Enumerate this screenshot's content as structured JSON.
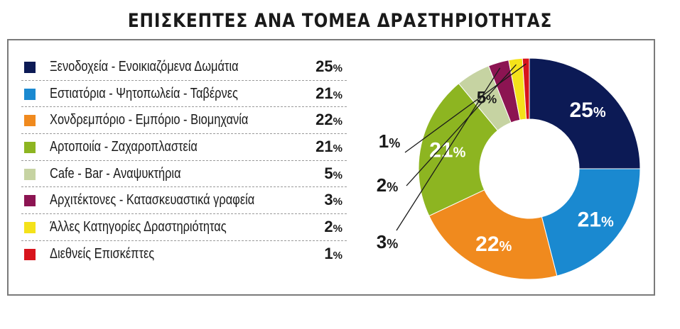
{
  "title": "ΕΠΙΣΚΕΠΤΕΣ ΑΝΑ ΤΟΜΕΑ ΔΡΑΣΤΗΡΙΟΤΗΤΑΣ",
  "chart_data": {
    "type": "pie",
    "title": "ΕΠΙΣΚΕΠΤΕΣ ΑΝΑ ΤΟΜΕΑ ΔΡΑΣΤΗΡΙΟΤΗΤΑΣ",
    "unit": "%",
    "legend_placement": "left",
    "series": [
      {
        "name": "Ξενοδοχεία - Ενοικιαζόμενα Δωμάτια",
        "value": 25,
        "label": "25",
        "color": "#0c1a55"
      },
      {
        "name": "Εστιατόρια - Ψητοπωλεία - Ταβέρνες",
        "value": 21,
        "label": "21",
        "color": "#1a89d0"
      },
      {
        "name": "Χονδρεμπόριο - Εμπόριο - Βιομηχανία",
        "value": 22,
        "label": "22",
        "color": "#f08a1e"
      },
      {
        "name": "Αρτοποιία - Ζαχαροπλαστεία",
        "value": 21,
        "label": "21",
        "color": "#8db521"
      },
      {
        "name": "Cafe - Bar - Αναψυκτήρια",
        "value": 5,
        "label": "5",
        "color": "#c6d3a2"
      },
      {
        "name": "Αρχιτέκτονες - Κατασκευαστικά γραφεία",
        "value": 3,
        "label": "3",
        "color": "#8c1452"
      },
      {
        "name": "Άλλες Κατηγορίες Δραστηριότητας",
        "value": 2,
        "label": "2",
        "color": "#f4e21a"
      },
      {
        "name": "Διεθνείς Επισκέπτες",
        "value": 1,
        "label": "1",
        "color": "#d8141c"
      }
    ],
    "percent_sign": "%"
  }
}
